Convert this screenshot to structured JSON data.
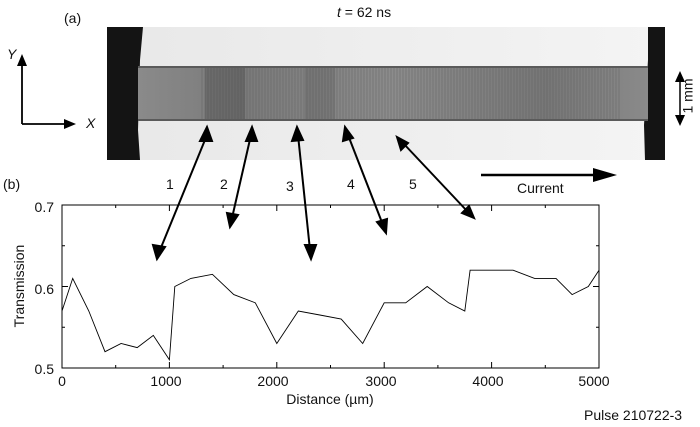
{
  "figure": {
    "panel_a_label": "(a)",
    "panel_b_label": "(b)",
    "time_label_var": "t",
    "time_label_rest": " = 62 ns",
    "axis_y_label": "Y",
    "axis_x_label": "X",
    "scale_label": "1 mm",
    "current_label": "Current",
    "pulse_label": "Pulse 210722-3",
    "region_numbers": [
      "1",
      "2",
      "3",
      "4",
      "5"
    ]
  },
  "chart_data": {
    "type": "line",
    "xlabel": "Distance (µm)",
    "ylabel": "Transmission",
    "xlim": [
      0,
      5000
    ],
    "ylim": [
      0.5,
      0.7
    ],
    "xticks": [
      "0",
      "1000",
      "2000",
      "3000",
      "4000",
      "5000"
    ],
    "yticks": [
      "0.5",
      "0.6",
      "0.7"
    ],
    "grid": false,
    "series": [
      {
        "x": [
          0,
          100,
          250,
          400,
          550,
          700,
          850,
          1000,
          1050,
          1200,
          1400,
          1600,
          1800,
          2000,
          2200,
          2400,
          2600,
          2800,
          3000,
          3200,
          3400,
          3600,
          3750,
          3800,
          4000,
          4200,
          4400,
          4600,
          4750,
          4900,
          5000
        ],
        "y": [
          0.57,
          0.61,
          0.57,
          0.52,
          0.53,
          0.525,
          0.54,
          0.51,
          0.6,
          0.61,
          0.615,
          0.59,
          0.58,
          0.53,
          0.57,
          0.565,
          0.56,
          0.53,
          0.58,
          0.58,
          0.6,
          0.58,
          0.57,
          0.62,
          0.62,
          0.62,
          0.61,
          0.61,
          0.59,
          0.6,
          0.62
        ]
      }
    ]
  }
}
